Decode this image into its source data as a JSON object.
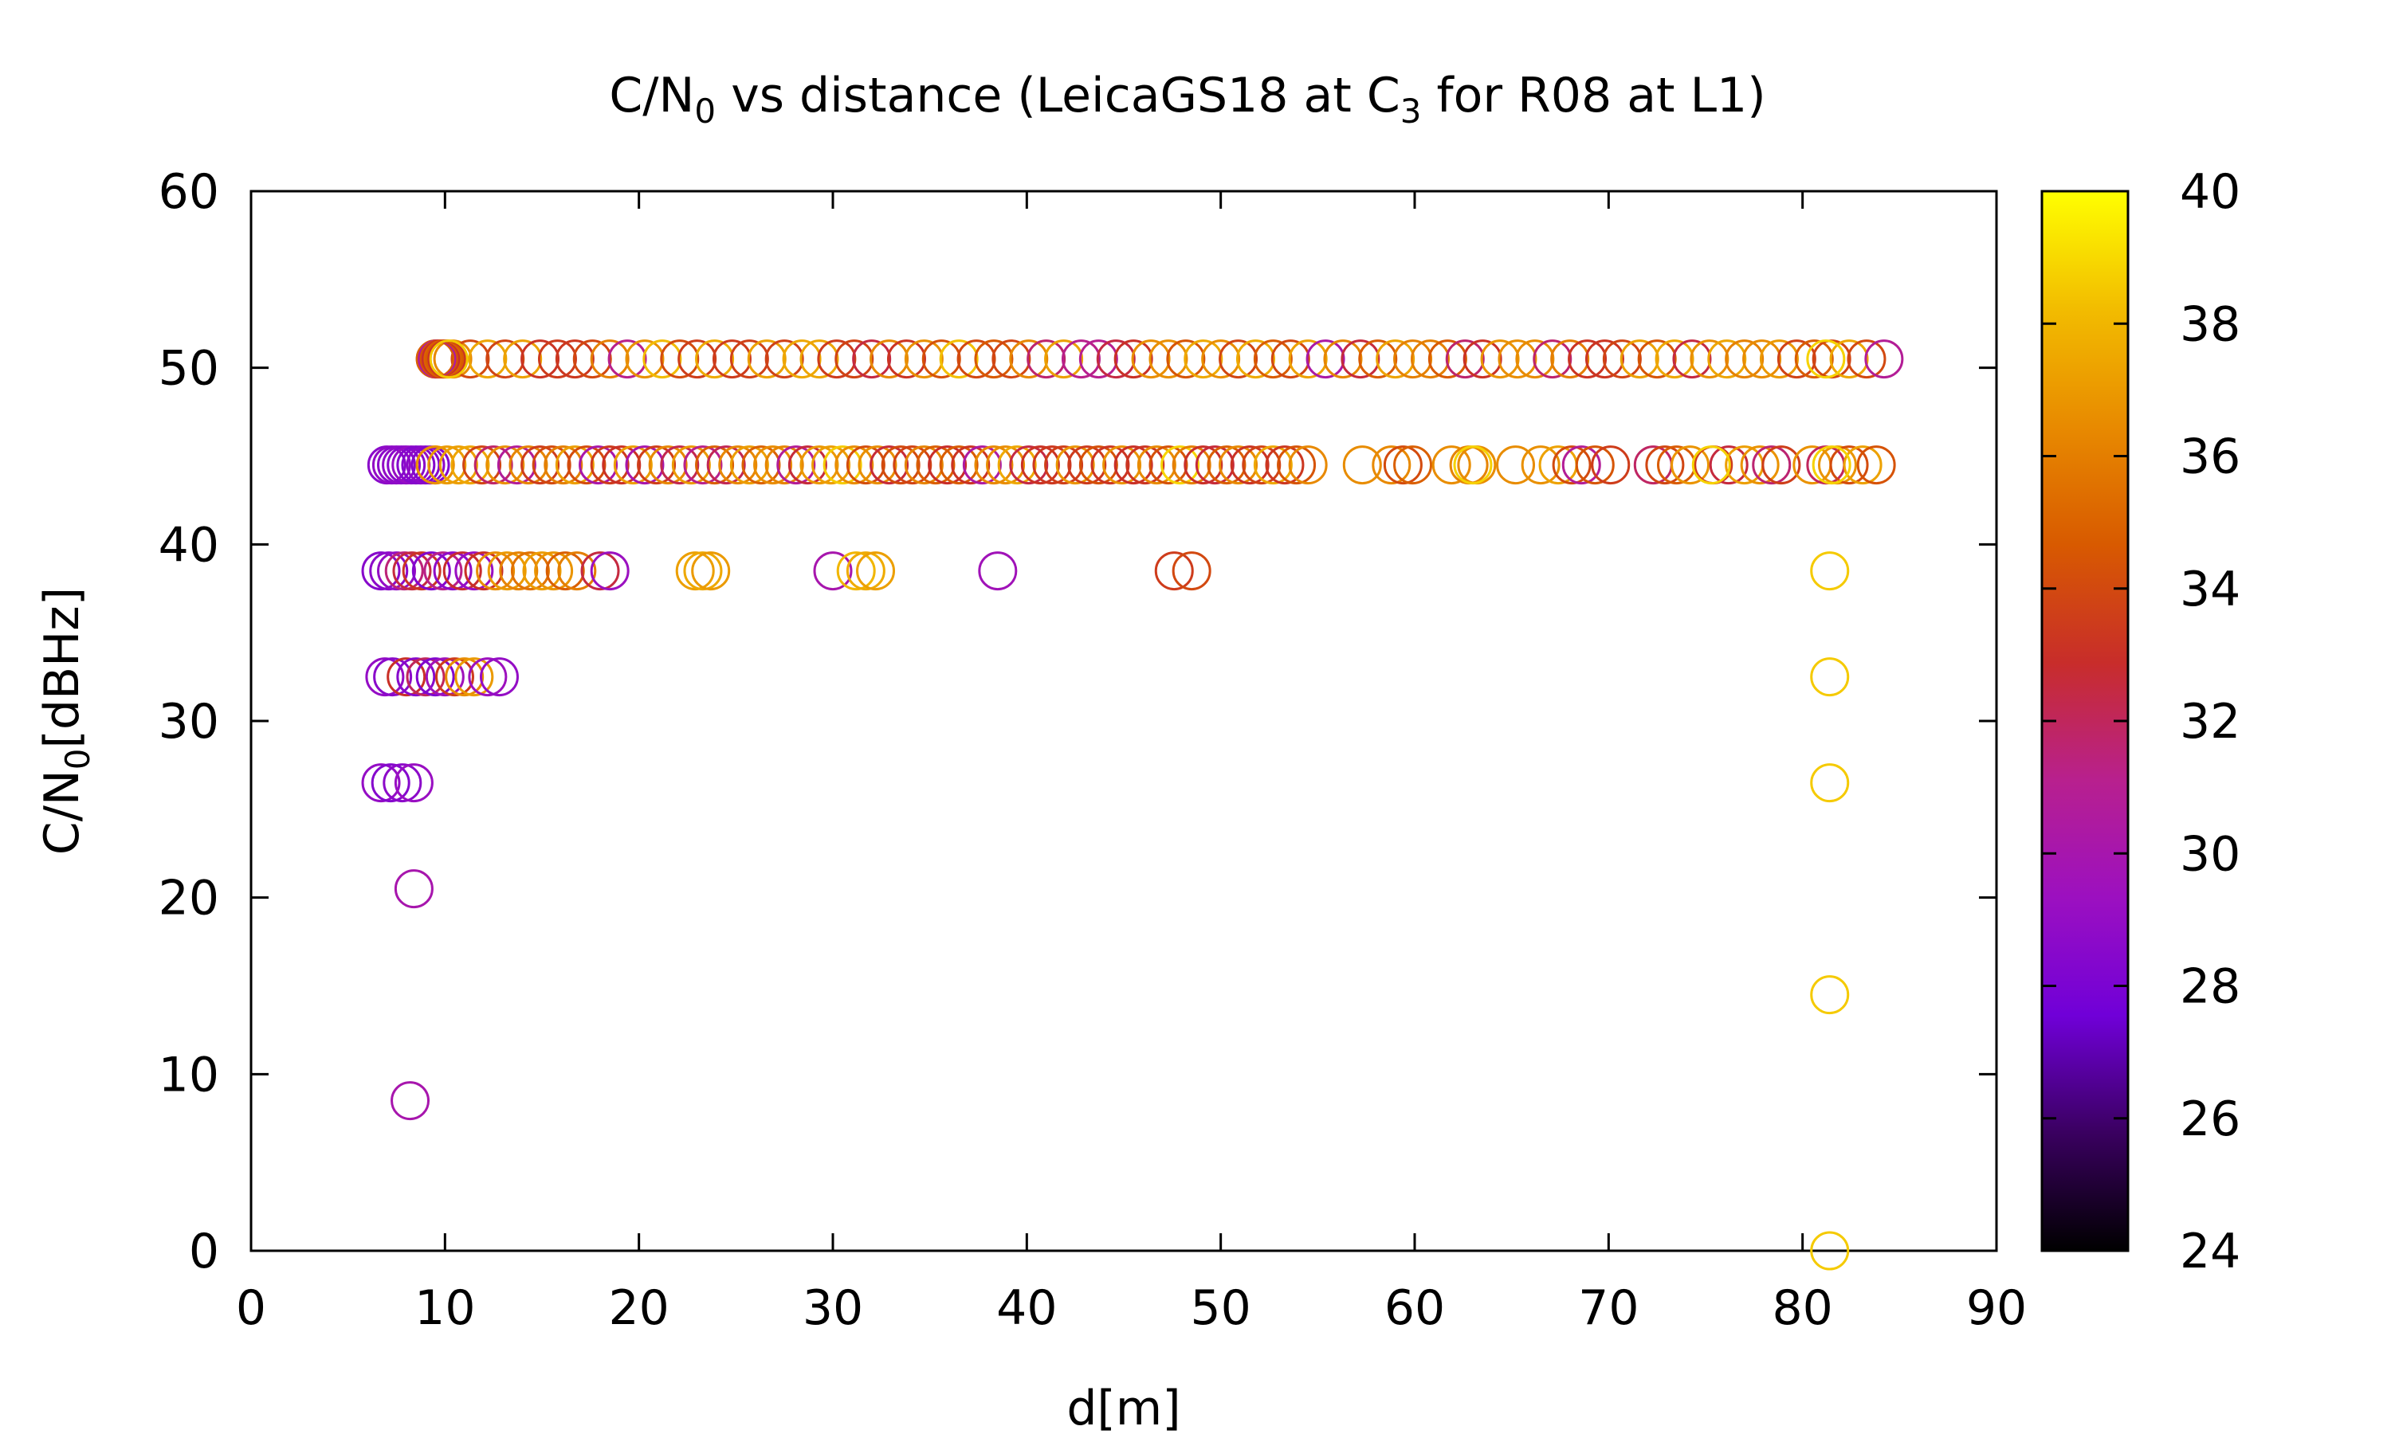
{
  "chart_data": {
    "type": "scatter",
    "title": {
      "part1": "C/N",
      "sub1": "0",
      "part2": " vs distance (LeicaGS18 at C",
      "sub2": "3",
      "part3": " for R08 at L1)"
    },
    "xlabel": "d[m]",
    "ylabel": {
      "main": "C/N",
      "sub": "0",
      "rest": "[dBHz]"
    },
    "xlim": [
      0,
      90
    ],
    "ylim": [
      0,
      60
    ],
    "x_ticks": [
      0,
      10,
      20,
      30,
      40,
      50,
      60,
      70,
      80,
      90
    ],
    "y_ticks": [
      0,
      10,
      20,
      30,
      40,
      50,
      60
    ],
    "colorbar": {
      "range": [
        24,
        40
      ],
      "ticks": [
        24,
        26,
        28,
        30,
        32,
        34,
        36,
        38,
        40
      ],
      "palette": [
        "#000000",
        "#3a0060",
        "#7000d8",
        "#9c10c0",
        "#b8208e",
        "#c82d2a",
        "#d85a00",
        "#e88a00",
        "#f2bc00",
        "#ffff00"
      ]
    },
    "grid": false,
    "legend": "none",
    "marker": "open-circle",
    "rows": [
      {
        "y": 50.5,
        "segments": [
          [
            9.5,
            85.0,
            0.9
          ],
          [
            9.5,
            10.2,
            0.1
          ]
        ],
        "palette": "upper"
      },
      {
        "y": 44.5,
        "segments": [
          [
            7.0,
            9.5,
            0.25
          ],
          [
            9.5,
            55.0,
            0.6
          ]
        ],
        "palette": "upper",
        "extra_x": [
          57.3,
          58.8,
          59.4,
          59.9,
          61.9,
          62.8,
          63.2,
          65.2,
          66.5,
          67.4,
          68.1,
          68.6,
          69.3,
          70.1,
          72.3,
          72.9,
          73.5,
          74.2,
          75.4,
          76.2,
          77.0,
          77.8,
          78.4,
          78.9,
          80.5,
          81.2,
          81.8,
          82.4,
          83.1,
          83.8
        ]
      },
      {
        "y": 38.5,
        "points": [
          [
            6.7,
            28.5
          ],
          [
            7.1,
            28.7
          ],
          [
            7.5,
            29.0
          ],
          [
            7.9,
            31.5
          ],
          [
            8.3,
            32.5
          ],
          [
            8.8,
            33.2
          ],
          [
            9.3,
            28.3
          ],
          [
            9.9,
            31.2
          ],
          [
            10.4,
            28.8
          ],
          [
            10.9,
            32.8
          ],
          [
            11.5,
            29.2
          ],
          [
            12.0,
            33.0
          ],
          [
            12.6,
            36.5
          ],
          [
            13.2,
            37.0
          ],
          [
            13.8,
            36.2
          ],
          [
            14.4,
            35.5
          ],
          [
            15.0,
            37.1
          ],
          [
            15.6,
            36.8
          ],
          [
            16.2,
            34.8
          ],
          [
            16.8,
            36.0
          ],
          [
            18.0,
            32.5
          ],
          [
            18.5,
            29.3
          ],
          [
            22.9,
            37.2
          ],
          [
            23.3,
            37.5
          ],
          [
            23.7,
            37.0
          ],
          [
            30.0,
            30.0
          ],
          [
            31.2,
            38.0
          ],
          [
            31.7,
            37.6
          ],
          [
            32.2,
            37.2
          ],
          [
            38.5,
            29.6
          ],
          [
            47.6,
            33.5
          ],
          [
            48.5,
            34.0
          ],
          [
            81.4,
            38.6
          ]
        ]
      },
      {
        "y": 32.5,
        "points": [
          [
            6.9,
            29.0
          ],
          [
            7.3,
            28.6
          ],
          [
            8.0,
            33.0
          ],
          [
            8.5,
            28.5
          ],
          [
            9.0,
            32.0
          ],
          [
            9.5,
            28.2
          ],
          [
            10.0,
            29.5
          ],
          [
            10.5,
            33.5
          ],
          [
            11.0,
            36.5
          ],
          [
            11.5,
            37.0
          ],
          [
            12.2,
            29.4
          ],
          [
            12.8,
            29.0
          ],
          [
            81.4,
            38.6
          ]
        ]
      },
      {
        "y": 26.5,
        "points": [
          [
            6.7,
            29.0
          ],
          [
            7.2,
            28.4
          ],
          [
            7.8,
            28.7
          ],
          [
            8.4,
            29.2
          ],
          [
            81.4,
            38.6
          ]
        ]
      },
      {
        "y": 20.5,
        "points": [
          [
            8.4,
            30.0
          ]
        ]
      },
      {
        "y": 14.5,
        "points": [
          [
            81.4,
            38.6
          ]
        ]
      },
      {
        "y": 8.5,
        "points": [
          [
            8.2,
            30.0
          ]
        ]
      },
      {
        "y": 0.0,
        "points": [
          [
            81.4,
            38.6
          ]
        ]
      }
    ]
  }
}
